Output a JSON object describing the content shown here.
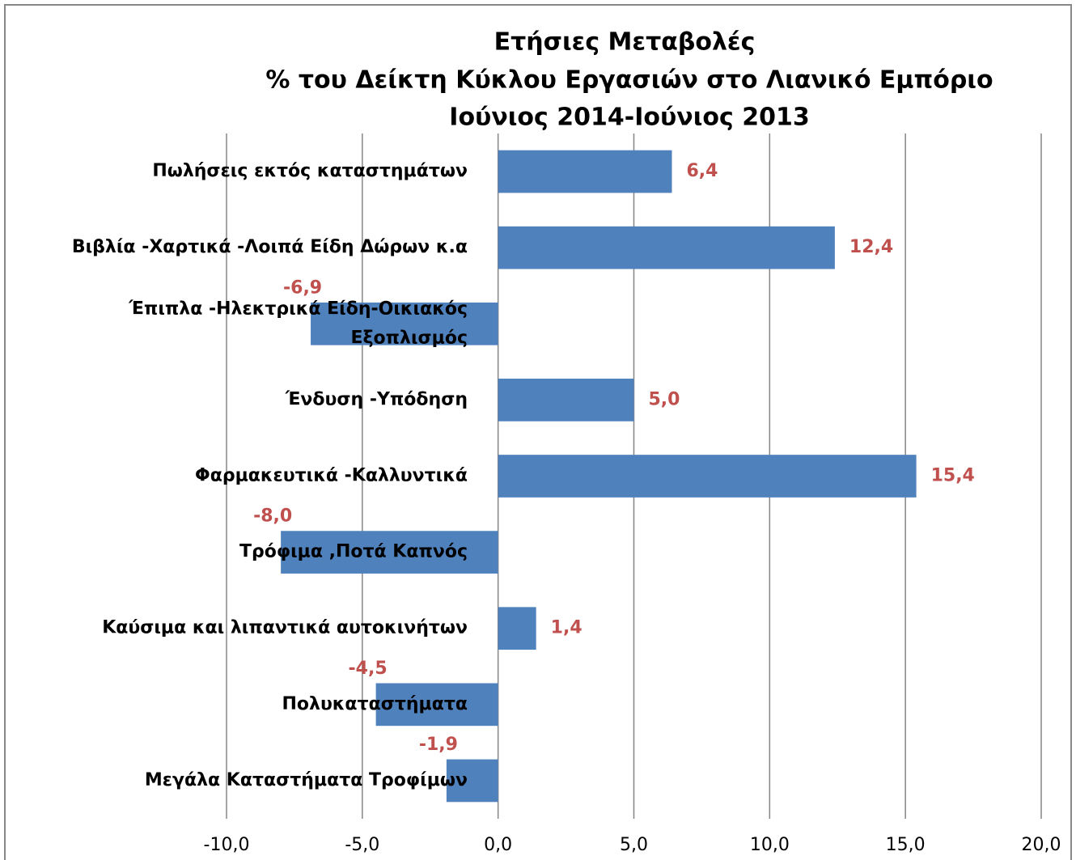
{
  "chart_data": {
    "type": "bar",
    "orientation": "horizontal",
    "title": [
      "Ετήσιες Μεταβολές",
      "% του Δείκτη Κύκλου Εργασιών στο Λιανικό Εμπόριο",
      "Ιούνιος 2014-Ιούνιος 2013"
    ],
    "categories": [
      "Πωλήσεις  εκτός καταστημάτων",
      "Βιβλία -Χαρτικά -Λοιπά Είδη Δώρων  κ.α",
      "Έπιπλα -Ηλεκτρικά Είδη-Οικιακός Εξοπλισμός",
      "Ένδυση -Υπόδηση",
      "Φαρμακευτικά -Καλλυντικά",
      "Τρόφιμα ,Ποτά Καπνός",
      "Καύσιμα και λιπαντικά αυτοκινήτων",
      "Πολυκαταστήματα",
      "Μεγάλα Καταστήματα Τροφίμων"
    ],
    "values": [
      6.4,
      12.4,
      -6.9,
      5.0,
      15.4,
      -8.0,
      1.4,
      -4.5,
      -1.9
    ],
    "value_labels": [
      "6,4",
      "12,4",
      "-6,9",
      "5,0",
      "15,4",
      "-8,0",
      "1,4",
      "-4,5",
      "-1,9"
    ],
    "color": "#4f81bd",
    "label_color": "#c0504d",
    "xlim": [
      -10,
      20
    ],
    "xticks": [
      {
        "value": -10,
        "label": "-10,0"
      },
      {
        "value": -5,
        "label": "-5,0"
      },
      {
        "value": 0,
        "label": "0,0"
      },
      {
        "value": 5,
        "label": "5,0"
      },
      {
        "value": 10,
        "label": "10,0"
      },
      {
        "value": 15,
        "label": "15,0"
      },
      {
        "value": 20,
        "label": "20,0"
      }
    ],
    "grid": true
  }
}
